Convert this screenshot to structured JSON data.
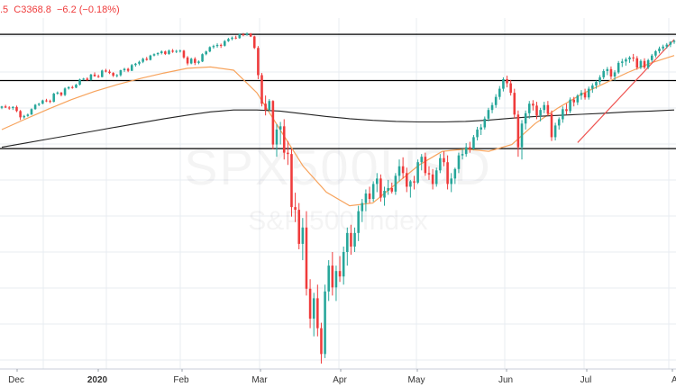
{
  "header": {
    "quote_text": ".5  C3368.8  −6.2 (−0.18%)"
  },
  "watermark": {
    "symbol": "SPX500USD",
    "name": "S&P 500 Index"
  },
  "colors": {
    "up": "#26a69a",
    "down": "#ef3b3b",
    "ma_short": "#f7a35c",
    "ma_long": "#222222",
    "trendline": "#ef5350",
    "level_line": "#000000",
    "grid": "#e9ecf2"
  },
  "chart_data": {
    "type": "candlestick",
    "x_tick_labels": [
      {
        "label": "Dec",
        "bold": false
      },
      {
        "label": "2020",
        "bold": true
      },
      {
        "label": "Feb",
        "bold": false
      },
      {
        "label": "Mar",
        "bold": false
      },
      {
        "label": "Apr",
        "bold": false
      },
      {
        "label": "May",
        "bold": false
      },
      {
        "label": "Jun",
        "bold": false
      },
      {
        "label": "Jul",
        "bold": false
      },
      {
        "label": "Aug",
        "bold": false
      }
    ],
    "horizontal_levels": [
      3390,
      3220,
      2970
    ],
    "ylim": [
      2160,
      3450
    ],
    "candles": [
      [
        3120,
        3127,
        3115,
        3125
      ],
      [
        3125,
        3131,
        3119,
        3121
      ],
      [
        3121,
        3126,
        3113,
        3119
      ],
      [
        3119,
        3126,
        3112,
        3123
      ],
      [
        3123,
        3128,
        3104,
        3108
      ],
      [
        3108,
        3112,
        3075,
        3085
      ],
      [
        3085,
        3094,
        3080,
        3090
      ],
      [
        3090,
        3099,
        3087,
        3095
      ],
      [
        3095,
        3118,
        3094,
        3115
      ],
      [
        3115,
        3134,
        3113,
        3131
      ],
      [
        3131,
        3138,
        3126,
        3135
      ],
      [
        3135,
        3150,
        3133,
        3147
      ],
      [
        3147,
        3153,
        3141,
        3145
      ],
      [
        3145,
        3150,
        3137,
        3142
      ],
      [
        3142,
        3175,
        3140,
        3172
      ],
      [
        3172,
        3180,
        3168,
        3176
      ],
      [
        3176,
        3178,
        3162,
        3167
      ],
      [
        3167,
        3195,
        3163,
        3191
      ],
      [
        3191,
        3199,
        3187,
        3196
      ],
      [
        3196,
        3201,
        3190,
        3194
      ],
      [
        3194,
        3208,
        3192,
        3205
      ],
      [
        3205,
        3227,
        3202,
        3224
      ],
      [
        3224,
        3230,
        3221,
        3227
      ],
      [
        3227,
        3232,
        3219,
        3222
      ],
      [
        3222,
        3245,
        3220,
        3242
      ],
      [
        3242,
        3250,
        3234,
        3236
      ],
      [
        3236,
        3242,
        3230,
        3233
      ],
      [
        3233,
        3260,
        3232,
        3257
      ],
      [
        3257,
        3263,
        3250,
        3253
      ],
      [
        3253,
        3260,
        3244,
        3248
      ],
      [
        3248,
        3251,
        3233,
        3238
      ],
      [
        3238,
        3244,
        3232,
        3240
      ],
      [
        3240,
        3260,
        3235,
        3258
      ],
      [
        3258,
        3267,
        3252,
        3263
      ],
      [
        3263,
        3267,
        3251,
        3256
      ],
      [
        3256,
        3281,
        3255,
        3277
      ],
      [
        3277,
        3285,
        3271,
        3282
      ],
      [
        3282,
        3293,
        3276,
        3289
      ],
      [
        3289,
        3304,
        3284,
        3300
      ],
      [
        3300,
        3307,
        3293,
        3296
      ],
      [
        3296,
        3315,
        3294,
        3312
      ],
      [
        3312,
        3320,
        3309,
        3317
      ],
      [
        3317,
        3324,
        3312,
        3321
      ],
      [
        3321,
        3331,
        3316,
        3327
      ],
      [
        3327,
        3330,
        3314,
        3318
      ],
      [
        3318,
        3334,
        3315,
        3330
      ],
      [
        3330,
        3336,
        3322,
        3326
      ],
      [
        3326,
        3333,
        3321,
        3329
      ],
      [
        3329,
        3334,
        3323,
        3330
      ],
      [
        3330,
        3333,
        3300,
        3305
      ],
      [
        3305,
        3310,
        3276,
        3283
      ],
      [
        3283,
        3304,
        3280,
        3300
      ],
      [
        3300,
        3306,
        3277,
        3285
      ],
      [
        3285,
        3294,
        3280,
        3290
      ],
      [
        3290,
        3320,
        3288,
        3317
      ],
      [
        3317,
        3330,
        3313,
        3327
      ],
      [
        3327,
        3346,
        3324,
        3343
      ],
      [
        3343,
        3352,
        3337,
        3347
      ],
      [
        3347,
        3357,
        3341,
        3351
      ],
      [
        3351,
        3356,
        3340,
        3348
      ],
      [
        3348,
        3369,
        3345,
        3365
      ],
      [
        3365,
        3377,
        3362,
        3373
      ],
      [
        3373,
        3382,
        3368,
        3378
      ],
      [
        3378,
        3385,
        3372,
        3376
      ],
      [
        3376,
        3393,
        3374,
        3390
      ],
      [
        3390,
        3395,
        3383,
        3388
      ],
      [
        3388,
        3397,
        3385,
        3393
      ],
      [
        3393,
        3395,
        3380,
        3382
      ],
      [
        3382,
        3385,
        3336,
        3340
      ],
      [
        3340,
        3347,
        3225,
        3240
      ],
      [
        3240,
        3248,
        3125,
        3135
      ],
      [
        3135,
        3165,
        3092,
        3112
      ],
      [
        3112,
        3152,
        3108,
        3145
      ],
      [
        3145,
        3148,
        2968,
        2985
      ],
      [
        2985,
        3060,
        2940,
        3040
      ],
      [
        3040,
        3068,
        2985,
        3052
      ],
      [
        3052,
        3078,
        2930,
        2955
      ],
      [
        2955,
        2998,
        2910,
        2950
      ],
      [
        2950,
        2970,
        2720,
        2755
      ],
      [
        2755,
        2808,
        2700,
        2745
      ],
      [
        2745,
        2770,
        2600,
        2620
      ],
      [
        2620,
        2715,
        2560,
        2680
      ],
      [
        2680,
        2740,
        2430,
        2455
      ],
      [
        2455,
        2490,
        2310,
        2345
      ],
      [
        2345,
        2440,
        2280,
        2420
      ],
      [
        2420,
        2470,
        2280,
        2310
      ],
      [
        2310,
        2330,
        2180,
        2215
      ],
      [
        2215,
        2470,
        2200,
        2445
      ],
      [
        2445,
        2560,
        2410,
        2540
      ],
      [
        2540,
        2590,
        2430,
        2460
      ],
      [
        2460,
        2540,
        2410,
        2520
      ],
      [
        2520,
        2575,
        2480,
        2500
      ],
      [
        2500,
        2610,
        2470,
        2590
      ],
      [
        2590,
        2680,
        2540,
        2660
      ],
      [
        2660,
        2690,
        2580,
        2610
      ],
      [
        2610,
        2680,
        2590,
        2660
      ],
      [
        2660,
        2760,
        2630,
        2740
      ],
      [
        2740,
        2785,
        2700,
        2770
      ],
      [
        2770,
        2820,
        2740,
        2805
      ],
      [
        2805,
        2830,
        2770,
        2785
      ],
      [
        2785,
        2850,
        2775,
        2840
      ],
      [
        2840,
        2880,
        2810,
        2860
      ],
      [
        2860,
        2875,
        2775,
        2790
      ],
      [
        2790,
        2830,
        2760,
        2815
      ],
      [
        2815,
        2855,
        2800,
        2825
      ],
      [
        2825,
        2845,
        2805,
        2812
      ],
      [
        2812,
        2880,
        2800,
        2870
      ],
      [
        2870,
        2930,
        2850,
        2905
      ],
      [
        2905,
        2938,
        2860,
        2880
      ],
      [
        2880,
        2900,
        2810,
        2830
      ],
      [
        2830,
        2855,
        2790,
        2850
      ],
      [
        2850,
        2870,
        2820,
        2845
      ],
      [
        2845,
        2930,
        2840,
        2920
      ],
      [
        2920,
        2950,
        2890,
        2940
      ],
      [
        2940,
        2955,
        2870,
        2880
      ],
      [
        2880,
        2905,
        2855,
        2875
      ],
      [
        2875,
        2895,
        2820,
        2840
      ],
      [
        2840,
        2900,
        2830,
        2890
      ],
      [
        2890,
        2950,
        2880,
        2935
      ],
      [
        2935,
        2960,
        2905,
        2920
      ],
      [
        2920,
        2945,
        2820,
        2840
      ],
      [
        2840,
        2880,
        2810,
        2860
      ],
      [
        2860,
        2900,
        2840,
        2895
      ],
      [
        2895,
        2955,
        2880,
        2945
      ],
      [
        2945,
        2970,
        2930,
        2950
      ],
      [
        2950,
        2990,
        2940,
        2975
      ],
      [
        2975,
        2995,
        2955,
        2970
      ],
      [
        2970,
        3020,
        2965,
        3012
      ],
      [
        3012,
        3050,
        3000,
        3040
      ],
      [
        3040,
        3060,
        3020,
        3048
      ],
      [
        3048,
        3088,
        3040,
        3080
      ],
      [
        3080,
        3120,
        3070,
        3112
      ],
      [
        3112,
        3140,
        3100,
        3130
      ],
      [
        3130,
        3170,
        3120,
        3160
      ],
      [
        3160,
        3200,
        3150,
        3190
      ],
      [
        3190,
        3232,
        3180,
        3225
      ],
      [
        3225,
        3238,
        3195,
        3210
      ],
      [
        3210,
        3222,
        3165,
        3175
      ],
      [
        3175,
        3190,
        3080,
        3095
      ],
      [
        3095,
        3110,
        2940,
        2975
      ],
      [
        2975,
        3075,
        2930,
        3062
      ],
      [
        3062,
        3110,
        3040,
        3100
      ],
      [
        3100,
        3145,
        3080,
        3135
      ],
      [
        3135,
        3148,
        3110,
        3128
      ],
      [
        3128,
        3142,
        3078,
        3092
      ],
      [
        3092,
        3120,
        3070,
        3112
      ],
      [
        3112,
        3142,
        3100,
        3130
      ],
      [
        3130,
        3145,
        3090,
        3098
      ],
      [
        3098,
        3110,
        2998,
        3012
      ],
      [
        3012,
        3065,
        3000,
        3055
      ],
      [
        3055,
        3085,
        3040,
        3078
      ],
      [
        3078,
        3125,
        3065,
        3115
      ],
      [
        3115,
        3135,
        3095,
        3108
      ],
      [
        3108,
        3158,
        3100,
        3150
      ],
      [
        3150,
        3160,
        3125,
        3140
      ],
      [
        3140,
        3170,
        3130,
        3165
      ],
      [
        3165,
        3185,
        3150,
        3175
      ],
      [
        3175,
        3190,
        3150,
        3158
      ],
      [
        3158,
        3198,
        3150,
        3190
      ],
      [
        3190,
        3210,
        3175,
        3202
      ],
      [
        3202,
        3220,
        3190,
        3215
      ],
      [
        3215,
        3240,
        3205,
        3232
      ],
      [
        3232,
        3262,
        3225,
        3255
      ],
      [
        3255,
        3270,
        3240,
        3262
      ],
      [
        3262,
        3272,
        3225,
        3235
      ],
      [
        3235,
        3258,
        3220,
        3250
      ],
      [
        3250,
        3292,
        3245,
        3285
      ],
      [
        3285,
        3300,
        3270,
        3290
      ],
      [
        3290,
        3305,
        3275,
        3298
      ],
      [
        3298,
        3310,
        3285,
        3305
      ],
      [
        3305,
        3318,
        3290,
        3302
      ],
      [
        3302,
        3310,
        3260,
        3268
      ],
      [
        3268,
        3298,
        3262,
        3292
      ],
      [
        3292,
        3302,
        3262,
        3268
      ],
      [
        3268,
        3300,
        3262,
        3295
      ],
      [
        3295,
        3318,
        3288,
        3312
      ],
      [
        3312,
        3332,
        3305,
        3328
      ],
      [
        3328,
        3345,
        3320,
        3338
      ],
      [
        3338,
        3352,
        3330,
        3345
      ],
      [
        3345,
        3358,
        3338,
        3352
      ],
      [
        3352,
        3365,
        3343,
        3362
      ],
      [
        3362,
        3370,
        3355,
        3366
      ]
    ],
    "series": [
      {
        "kind": "ma_short",
        "values": [
          3040,
          3078,
          3115,
          3150,
          3180,
          3206,
          3228,
          3248,
          3265,
          3270,
          3258,
          3175,
          3040,
          2905,
          2810,
          2760,
          2770,
          2840,
          2910,
          2960,
          2968,
          2960,
          2985,
          3062,
          3120,
          3170,
          3210,
          3250,
          3285,
          3312
        ]
      },
      {
        "kind": "ma_long",
        "values": [
          2975,
          2990,
          3005,
          3020,
          3035,
          3050,
          3065,
          3080,
          3093,
          3105,
          3112,
          3112,
          3108,
          3098,
          3088,
          3080,
          3074,
          3070,
          3068,
          3068,
          3070,
          3075,
          3082,
          3088,
          3092,
          3096,
          3100,
          3105,
          3108,
          3112
        ]
      },
      {
        "kind": "trendline",
        "values": [
          [
            2992,
            3228
          ],
          [
            3348,
            3371
          ]
        ]
      }
    ]
  }
}
